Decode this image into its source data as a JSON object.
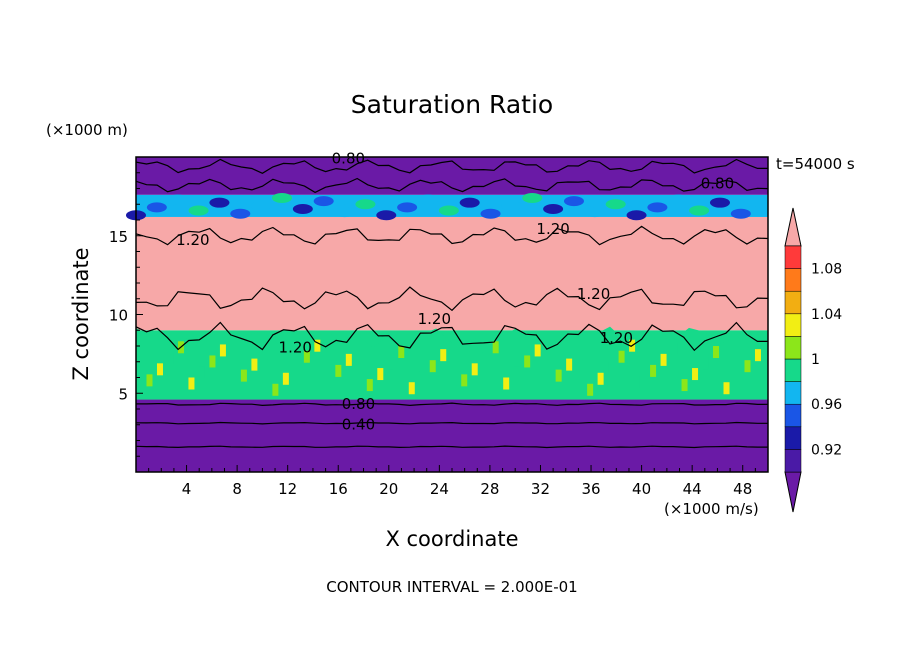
{
  "chart_data": {
    "type": "heatmap",
    "title": "Saturation Ratio",
    "xlabel": "X coordinate",
    "ylabel": "Z coordinate",
    "x_unit": "(×1000 m/s)",
    "y_unit": "(×1000 m)",
    "time_label": "t=54000 s",
    "footer": "CONTOUR INTERVAL = 2.000E-01",
    "xlim": [
      0,
      50
    ],
    "ylim": [
      0,
      20
    ],
    "x_ticks": [
      4,
      8,
      12,
      16,
      20,
      24,
      28,
      32,
      36,
      40,
      44,
      48
    ],
    "y_ticks": [
      5,
      10,
      15
    ],
    "colorbar": {
      "levels": [
        0.9,
        0.92,
        0.94,
        0.96,
        0.98,
        1.0,
        1.02,
        1.04,
        1.06,
        1.08,
        1.1
      ],
      "tick_labels": [
        {
          "value": 0.92,
          "label": "0.92"
        },
        {
          "value": 0.96,
          "label": "0.96"
        },
        {
          "value": 1.0,
          "label": "1"
        },
        {
          "value": 1.04,
          "label": "1.04"
        },
        {
          "value": 1.08,
          "label": "1.08"
        }
      ],
      "colors": [
        "#4a1aa6",
        "#1a1aa8",
        "#1a56e6",
        "#12b6f0",
        "#16d98a",
        "#8ce61a",
        "#f2ee14",
        "#f2ae12",
        "#ff7a1a",
        "#ff3a3a"
      ],
      "under_color": "#6a1aa6",
      "over_color": "#f7a8a8"
    },
    "bands": [
      {
        "from": 0,
        "to": 4.6,
        "value": "<0.90",
        "color": "#6a1aa6"
      },
      {
        "from": 4.6,
        "to": 9.0,
        "value": "0.94-1.10",
        "color": "#16d98a"
      },
      {
        "from": 9.0,
        "to": 16.2,
        "value": ">1.10",
        "color": "#f7a8a8"
      },
      {
        "from": 16.2,
        "to": 17.6,
        "value": "0.90-1.10",
        "color": "#12b6f0"
      },
      {
        "from": 17.6,
        "to": 20,
        "value": "<0.90",
        "color": "#6a1aa6"
      }
    ],
    "contour_labels": [
      {
        "x": 16.8,
        "y": 19.6,
        "label": "0.80"
      },
      {
        "x": 46.0,
        "y": 18.0,
        "label": "0.80"
      },
      {
        "x": 4.5,
        "y": 14.4,
        "label": "1.20"
      },
      {
        "x": 33.0,
        "y": 15.1,
        "label": "1.20"
      },
      {
        "x": 36.2,
        "y": 11.0,
        "label": "1.20"
      },
      {
        "x": 23.6,
        "y": 9.4,
        "label": "1.20"
      },
      {
        "x": 12.6,
        "y": 7.6,
        "label": "1.20"
      },
      {
        "x": 38.0,
        "y": 8.2,
        "label": "1.20"
      },
      {
        "x": 17.6,
        "y": 4.0,
        "label": "0.80"
      },
      {
        "x": 17.6,
        "y": 2.7,
        "label": "0.40"
      }
    ]
  }
}
